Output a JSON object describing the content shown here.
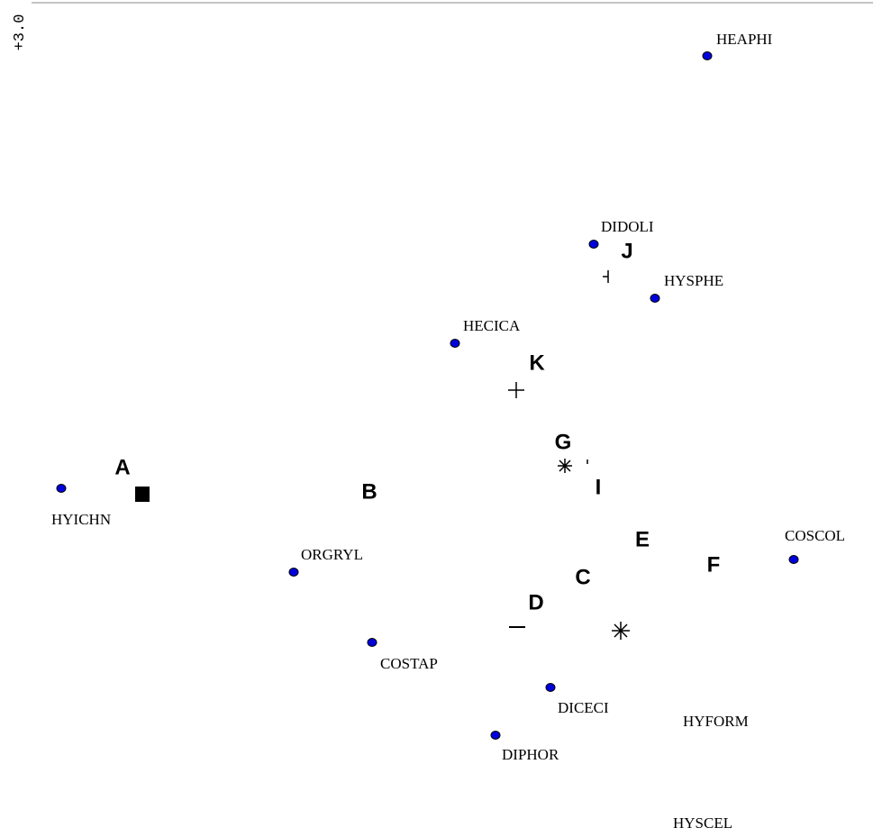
{
  "axis_label": "+3.0",
  "species": [
    "HEAPHI",
    "DIDOLI",
    "HYSPHE",
    "HECICA",
    "HYICHN",
    "ORGRYL",
    "COSCOL",
    "COSTAP",
    "DICECI",
    "DIPHOR",
    "HYFORM",
    "HYSCEL"
  ],
  "sites": [
    "A",
    "B",
    "C",
    "D",
    "E",
    "F",
    "G",
    "I",
    "J",
    "K"
  ]
}
